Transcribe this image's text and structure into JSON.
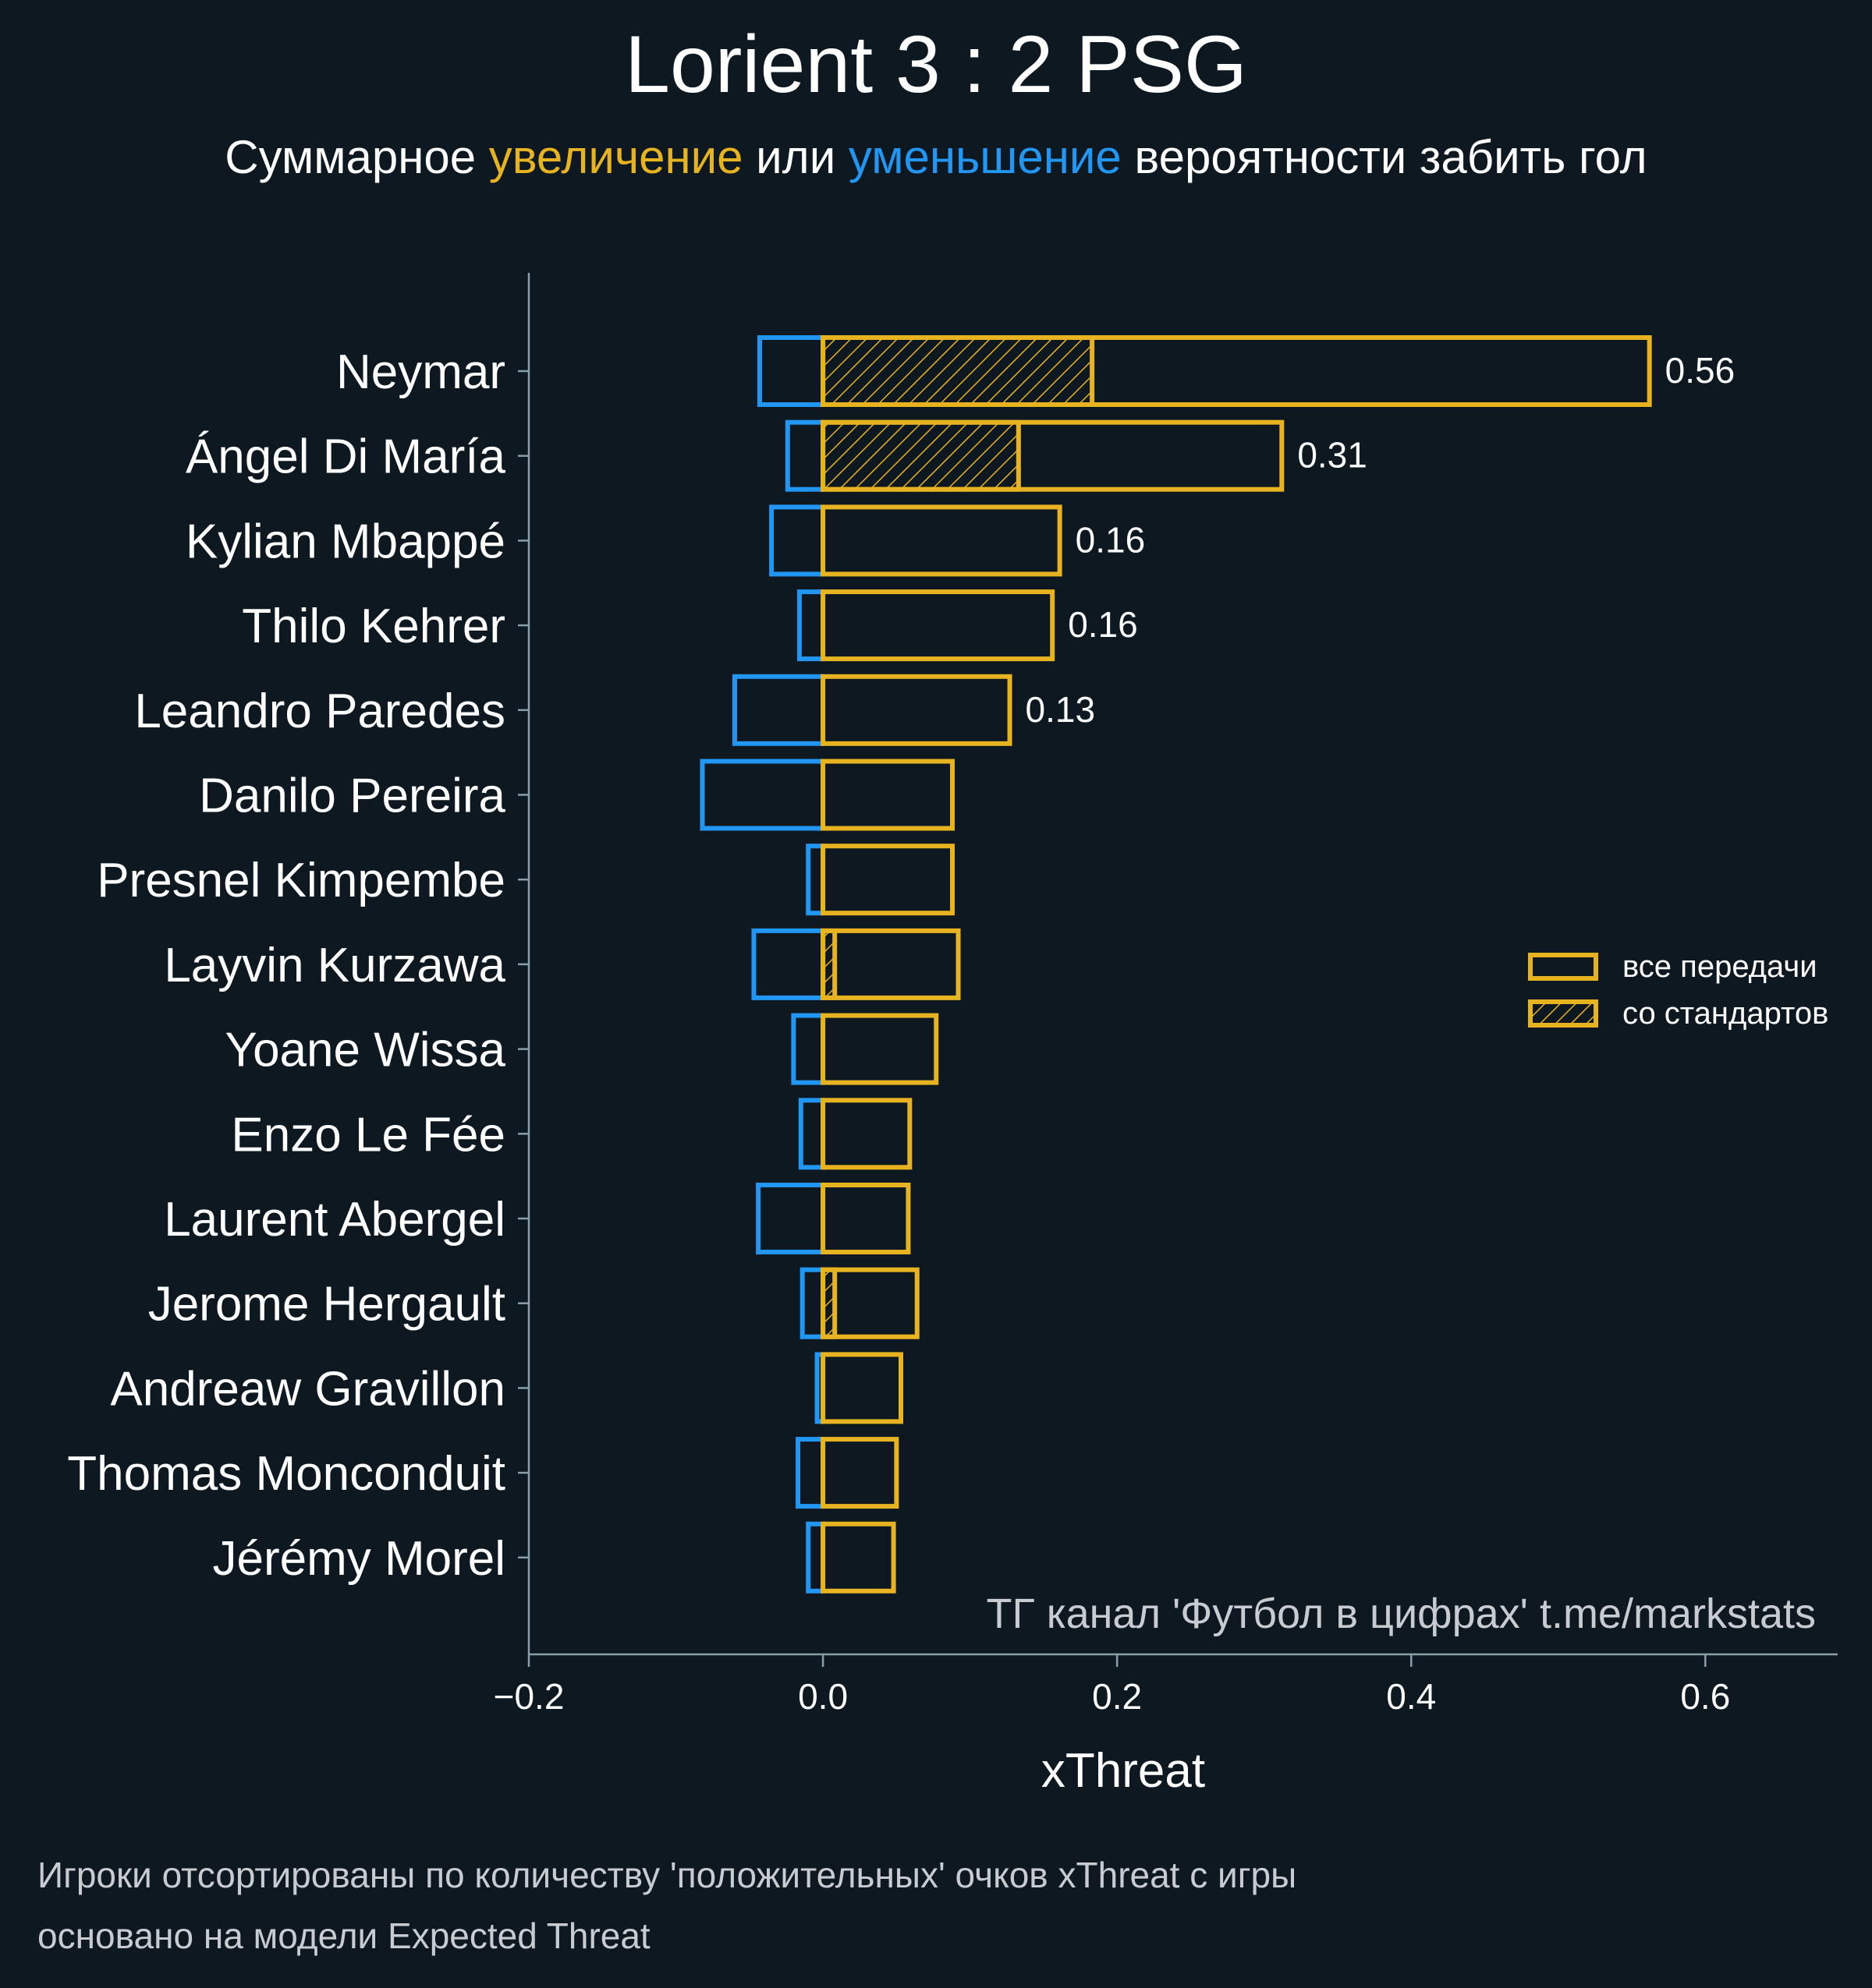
{
  "chart_data": {
    "type": "bar",
    "orientation": "horizontal",
    "title": "Lorient 3 : 2 PSG",
    "subtitle": {
      "prefix": "Суммарное ",
      "positive": "увеличение",
      "middle": " или ",
      "negative": "уменьшение",
      "suffix": " вероятности забить гол"
    },
    "xlabel": "xThreat",
    "ylabel": "",
    "xlim": [
      -0.2,
      0.69
    ],
    "xticks": [
      {
        "value": -0.2,
        "label": "−0.2"
      },
      {
        "value": 0.0,
        "label": "0.0"
      },
      {
        "value": 0.2,
        "label": "0.2"
      },
      {
        "value": 0.4,
        "label": "0.4"
      },
      {
        "value": 0.6,
        "label": "0.6"
      }
    ],
    "categories": [
      "Neymar",
      "Ángel Di María",
      "Kylian Mbappé",
      "Thilo Kehrer",
      "Leandro Paredes",
      "Danilo Pereira",
      "Presnel Kimpembe",
      "Layvin Kurzawa",
      "Yoane Wissa",
      "Enzo Le Fée",
      "Laurent Abergel",
      "Jerome Hergault",
      "Andreaw Gravillon",
      "Thomas Monconduit",
      "Jérémy Morel"
    ],
    "series": [
      {
        "name": "все передачи",
        "kind": "positive",
        "values": [
          0.562,
          0.312,
          0.161,
          0.156,
          0.127,
          0.088,
          0.088,
          0.092,
          0.077,
          0.059,
          0.058,
          0.064,
          0.053,
          0.05,
          0.048
        ]
      },
      {
        "name": "со стандартов",
        "kind": "set-pieces",
        "values": [
          0.183,
          0.133,
          0,
          0,
          0,
          0,
          0,
          0.008,
          0,
          0,
          0,
          0.008,
          0,
          0,
          0
        ]
      },
      {
        "name": "negative",
        "kind": "negative",
        "values": [
          -0.043,
          -0.024,
          -0.035,
          -0.016,
          -0.06,
          -0.082,
          -0.01,
          -0.047,
          -0.02,
          -0.015,
          -0.044,
          -0.014,
          -0.004,
          -0.017,
          -0.01
        ]
      }
    ],
    "value_labels": [
      "0.56",
      "0.31",
      "0.16",
      "0.16",
      "0.13"
    ],
    "legend": {
      "position": "right",
      "items": [
        {
          "label": "все передачи",
          "hatched": false
        },
        {
          "label": "со стандартов",
          "hatched": true
        }
      ]
    },
    "grid": false,
    "watermark": "ТГ канал 'Футбол в цифрах'  t.me/markstats"
  },
  "footnotes": [
    "Игроки отсортированы по количеству 'положительных' очков xThreat с игры",
    "основано на модели Expected Threat"
  ],
  "colors": {
    "background": "#0e1821",
    "positive": "#e8b320",
    "negative": "#2196f3",
    "text": "#ffffff",
    "muted": "#c8ccd0",
    "axis": "#8aa0a8"
  }
}
